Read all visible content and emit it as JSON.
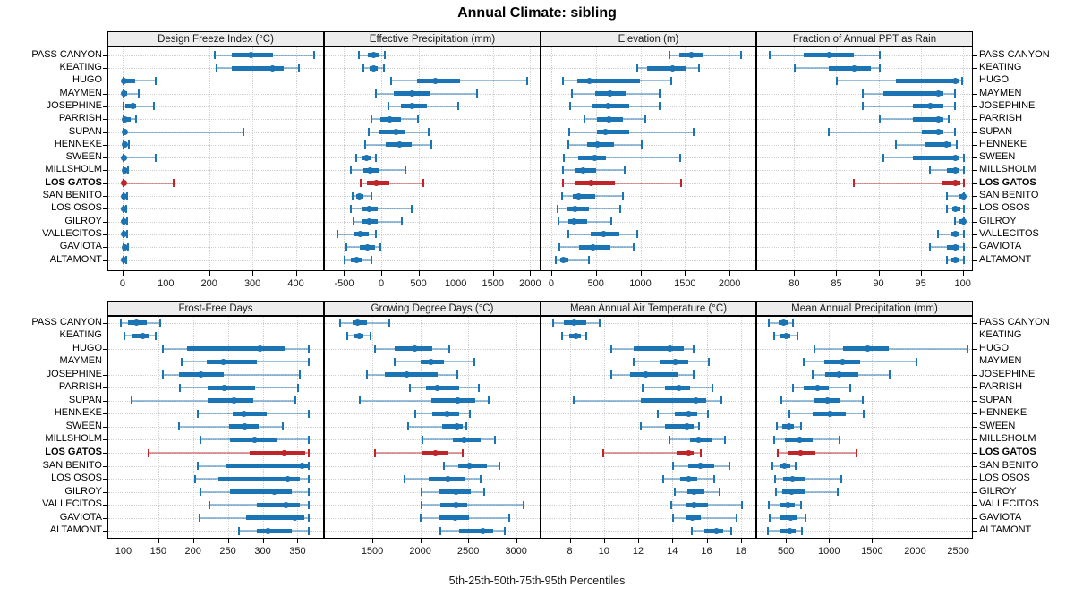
{
  "title": "Annual Climate: sibling",
  "footer": "5th-25th-50th-75th-95th Percentiles",
  "percentile_labels": [
    "5th",
    "25th",
    "50th",
    "75th",
    "95th"
  ],
  "highlight_site": "LOS GATOS",
  "colors": {
    "series": "#1B74B4",
    "highlight": "#BE2428",
    "range_rgba": "rgba(27,116,180,0.45)",
    "highlight_range_rgba": "rgba(190,36,40,0.45)",
    "grid": "#CFCFCF",
    "header_bg": "#EDEDED",
    "border": "#000000",
    "text": "#000000"
  },
  "sites": [
    "PASS CANYON",
    "KEATING",
    "HUGO",
    "MAYMEN",
    "JOSEPHINE",
    "PARRISH",
    "SUPAN",
    "HENNEKE",
    "SWEEN",
    "MILLSHOLM",
    "LOS GATOS",
    "SAN BENITO",
    "LOS OSOS",
    "GILROY",
    "VALLECITOS",
    "GAVIOTA",
    "ALTAMONT"
  ],
  "chart_data": [
    {
      "type": "dotplot",
      "panel": "Design Freeze Index (°C)",
      "grid_row": 0,
      "grid_col": 0,
      "xlim": [
        -35,
        465
      ],
      "ticks": [
        0,
        100,
        200,
        300,
        400
      ],
      "percentiles": [
        [
          210,
          250,
          295,
          345,
          440
        ],
        [
          215,
          250,
          345,
          370,
          405
        ],
        [
          0,
          0,
          2,
          27,
          75
        ],
        [
          0,
          0,
          2,
          8,
          36
        ],
        [
          0,
          5,
          22,
          30,
          70
        ],
        [
          0,
          0,
          4,
          17,
          29
        ],
        [
          0,
          0,
          3,
          8,
          277
        ],
        [
          0,
          0,
          3,
          6,
          13
        ],
        [
          0,
          0,
          2,
          5,
          74
        ],
        [
          0,
          0,
          3,
          5,
          11
        ],
        [
          0,
          0,
          2,
          5,
          115
        ],
        [
          0,
          0,
          2,
          4,
          8
        ],
        [
          0,
          0,
          2,
          4,
          7
        ],
        [
          0,
          0,
          2,
          4,
          8
        ],
        [
          0,
          0,
          2,
          4,
          8
        ],
        [
          0,
          0,
          3,
          5,
          10
        ],
        [
          0,
          0,
          2,
          4,
          7
        ]
      ]
    },
    {
      "type": "dotplot",
      "panel": "Effective Precipitation (mm)",
      "grid_row": 0,
      "grid_col": 1,
      "xlim": [
        -770,
        2140
      ],
      "ticks": [
        -500,
        0,
        500,
        1000,
        1500,
        2000
      ],
      "percentiles": [
        [
          -310,
          -190,
          -110,
          -50,
          30
        ],
        [
          -250,
          -170,
          -110,
          -60,
          20
        ],
        [
          120,
          470,
          720,
          1050,
          1950
        ],
        [
          -90,
          150,
          400,
          640,
          1270
        ],
        [
          80,
          250,
          400,
          600,
          1020
        ],
        [
          -150,
          -30,
          100,
          250,
          480
        ],
        [
          -180,
          -50,
          180,
          300,
          630
        ],
        [
          -230,
          50,
          230,
          400,
          660
        ],
        [
          -350,
          -280,
          -210,
          -150,
          -80
        ],
        [
          -420,
          -250,
          -160,
          -50,
          310
        ],
        [
          -290,
          -200,
          -80,
          100,
          550
        ],
        [
          -400,
          -350,
          -310,
          -250,
          -140
        ],
        [
          -420,
          -280,
          -180,
          -60,
          400
        ],
        [
          -380,
          -270,
          -180,
          -60,
          260
        ],
        [
          -600,
          -380,
          -290,
          -180,
          -80
        ],
        [
          -480,
          -300,
          -200,
          -100,
          -20
        ],
        [
          -500,
          -420,
          -340,
          -280,
          -150
        ]
      ]
    },
    {
      "type": "dotplot",
      "panel": "Elevation (m)",
      "grid_row": 0,
      "grid_col": 2,
      "xlim": [
        -120,
        2300
      ],
      "ticks": [
        0,
        500,
        1000,
        1500,
        2000
      ],
      "percentiles": [
        [
          1320,
          1430,
          1560,
          1700,
          2120
        ],
        [
          950,
          1060,
          1350,
          1510,
          1650
        ],
        [
          120,
          280,
          420,
          980,
          1340
        ],
        [
          220,
          480,
          650,
          830,
          1210
        ],
        [
          200,
          450,
          630,
          860,
          1210
        ],
        [
          360,
          500,
          640,
          790,
          1040
        ],
        [
          190,
          500,
          600,
          860,
          1590
        ],
        [
          180,
          390,
          510,
          690,
          1000
        ],
        [
          130,
          290,
          480,
          600,
          1440
        ],
        [
          120,
          250,
          350,
          490,
          810
        ],
        [
          120,
          250,
          440,
          700,
          1450
        ],
        [
          110,
          230,
          300,
          480,
          790
        ],
        [
          60,
          170,
          260,
          410,
          760
        ],
        [
          70,
          180,
          250,
          390,
          660
        ],
        [
          180,
          430,
          580,
          750,
          950
        ],
        [
          80,
          300,
          460,
          650,
          910
        ],
        [
          40,
          90,
          130,
          180,
          410
        ]
      ]
    },
    {
      "type": "dotplot",
      "panel": "Fraction of Annual PPT as Rain",
      "grid_row": 0,
      "grid_col": 3,
      "xlim": [
        75.5,
        101.2
      ],
      "ticks": [
        80,
        85,
        90,
        95,
        100
      ],
      "percentiles": [
        [
          77,
          81,
          84,
          87,
          90
        ],
        [
          80,
          84,
          87,
          89,
          90
        ],
        [
          85,
          92,
          99,
          99.4,
          99.8
        ],
        [
          88,
          90.5,
          97,
          97.6,
          99
        ],
        [
          88,
          94,
          96,
          97.6,
          99
        ],
        [
          90,
          94,
          97,
          97.6,
          98.2
        ],
        [
          84,
          95,
          97,
          97.6,
          99
        ],
        [
          92,
          95.5,
          98,
          98.5,
          99.2
        ],
        [
          90.5,
          94,
          99,
          99.5,
          100
        ],
        [
          96,
          98,
          99,
          99.5,
          100
        ],
        [
          87,
          97.5,
          99,
          99.6,
          100
        ],
        [
          98,
          99.4,
          100,
          100,
          100
        ],
        [
          98,
          98.6,
          99,
          99.6,
          100
        ],
        [
          99,
          99.5,
          100,
          100,
          100
        ],
        [
          97,
          98.5,
          99,
          99.5,
          100
        ],
        [
          96,
          98,
          99,
          99.5,
          100
        ],
        [
          98,
          98.5,
          99,
          99.4,
          100
        ]
      ]
    },
    {
      "type": "dotplot",
      "panel": "Frost-Free Days",
      "grid_row": 1,
      "grid_col": 0,
      "xlim": [
        77,
        388
      ],
      "ticks": [
        100,
        150,
        200,
        250,
        300,
        350
      ],
      "percentiles": [
        [
          95,
          105,
          118,
          132,
          152
        ],
        [
          100,
          112,
          127,
          135,
          145
        ],
        [
          155,
          190,
          295,
          330,
          365
        ],
        [
          182,
          218,
          242,
          290,
          365
        ],
        [
          155,
          178,
          210,
          243,
          352
        ],
        [
          180,
          220,
          243,
          288,
          350
        ],
        [
          110,
          220,
          257,
          285,
          345
        ],
        [
          205,
          255,
          272,
          305,
          365
        ],
        [
          178,
          250,
          273,
          293,
          327
        ],
        [
          210,
          252,
          287,
          318,
          365
        ],
        [
          135,
          280,
          330,
          360,
          365
        ],
        [
          205,
          245,
          355,
          363,
          365
        ],
        [
          202,
          235,
          335,
          352,
          365
        ],
        [
          210,
          252,
          315,
          341,
          365
        ],
        [
          222,
          290,
          332,
          352,
          365
        ],
        [
          208,
          275,
          345,
          358,
          365
        ],
        [
          265,
          290,
          307,
          340,
          365
        ]
      ]
    },
    {
      "type": "dotplot",
      "panel": "Growing Degree Days (°C)",
      "grid_row": 1,
      "grid_col": 1,
      "xlim": [
        995,
        3255
      ],
      "ticks": [
        1500,
        2000,
        2500,
        3000
      ],
      "percentiles": [
        [
          1150,
          1280,
          1340,
          1430,
          1670
        ],
        [
          1230,
          1290,
          1350,
          1400,
          1470
        ],
        [
          1520,
          1720,
          1930,
          2120,
          2290
        ],
        [
          1720,
          1990,
          2100,
          2240,
          2550
        ],
        [
          1430,
          1620,
          1850,
          2170,
          2380
        ],
        [
          1880,
          2050,
          2170,
          2400,
          2600
        ],
        [
          1360,
          2110,
          2380,
          2560,
          2700
        ],
        [
          1940,
          2120,
          2270,
          2400,
          2510
        ],
        [
          1860,
          2220,
          2370,
          2430,
          2470
        ],
        [
          2010,
          2330,
          2450,
          2620,
          2770
        ],
        [
          1520,
          2010,
          2150,
          2280,
          2430
        ],
        [
          2240,
          2390,
          2500,
          2690,
          2820
        ],
        [
          1830,
          2080,
          2280,
          2460,
          2620
        ],
        [
          2000,
          2190,
          2360,
          2520,
          2660
        ],
        [
          2000,
          2200,
          2360,
          2480,
          3070
        ],
        [
          1990,
          2190,
          2350,
          2500,
          2920
        ],
        [
          2200,
          2400,
          2640,
          2750,
          2870
        ]
      ]
    },
    {
      "type": "dotplot",
      "panel": "Mean Annual Air Temperature (°C)",
      "grid_row": 1,
      "grid_col": 2,
      "xlim": [
        6.3,
        18.9
      ],
      "ticks": [
        8,
        10,
        12,
        14,
        16,
        18
      ],
      "percentiles": [
        [
          7.0,
          7.6,
          8.2,
          8.9,
          9.7
        ],
        [
          7.5,
          7.9,
          8.3,
          8.6,
          8.9
        ],
        [
          10.4,
          11.7,
          13.8,
          14.6,
          15.2
        ],
        [
          11.7,
          13.2,
          14.1,
          14.9,
          16.1
        ],
        [
          10.4,
          11.5,
          12.4,
          14.3,
          15.2
        ],
        [
          12.2,
          13.5,
          14.3,
          15.0,
          16.3
        ],
        [
          8.2,
          12.1,
          15.3,
          15.9,
          16.8
        ],
        [
          13.1,
          14.1,
          14.9,
          15.4,
          16.0
        ],
        [
          12.1,
          13.5,
          14.8,
          15.2,
          15.5
        ],
        [
          13.8,
          15.0,
          15.5,
          16.3,
          17.0
        ],
        [
          9.9,
          14.2,
          14.9,
          15.2,
          15.6
        ],
        [
          14.0,
          14.9,
          15.6,
          16.4,
          17.3
        ],
        [
          13.4,
          14.4,
          14.9,
          15.4,
          16.4
        ],
        [
          14.1,
          14.8,
          15.2,
          15.8,
          16.7
        ],
        [
          13.9,
          14.7,
          15.2,
          16.0,
          18.0
        ],
        [
          14.0,
          14.7,
          15.1,
          15.6,
          17.7
        ],
        [
          15.1,
          15.8,
          16.5,
          16.9,
          17.4
        ]
      ]
    },
    {
      "type": "dotplot",
      "panel": "Mean Annual Precipitation (mm)",
      "grid_row": 1,
      "grid_col": 3,
      "xlim": [
        155,
        2670
      ],
      "ticks": [
        500,
        1000,
        1500,
        2000,
        2500
      ],
      "percentiles": [
        [
          290,
          400,
          460,
          510,
          570
        ],
        [
          350,
          420,
          490,
          540,
          620
        ],
        [
          820,
          1150,
          1440,
          1680,
          2600
        ],
        [
          700,
          930,
          1150,
          1350,
          2010
        ],
        [
          800,
          950,
          1110,
          1330,
          1690
        ],
        [
          570,
          700,
          860,
          990,
          1240
        ],
        [
          440,
          820,
          970,
          1120,
          1380
        ],
        [
          530,
          800,
          1000,
          1180,
          1390
        ],
        [
          380,
          450,
          520,
          580,
          660
        ],
        [
          350,
          480,
          650,
          800,
          1110
        ],
        [
          390,
          520,
          660,
          830,
          1310
        ],
        [
          330,
          420,
          470,
          540,
          600
        ],
        [
          360,
          460,
          570,
          710,
          1130
        ],
        [
          370,
          450,
          560,
          720,
          1090
        ],
        [
          290,
          420,
          510,
          590,
          660
        ],
        [
          300,
          430,
          540,
          610,
          720
        ],
        [
          280,
          420,
          530,
          600,
          670
        ]
      ]
    }
  ]
}
